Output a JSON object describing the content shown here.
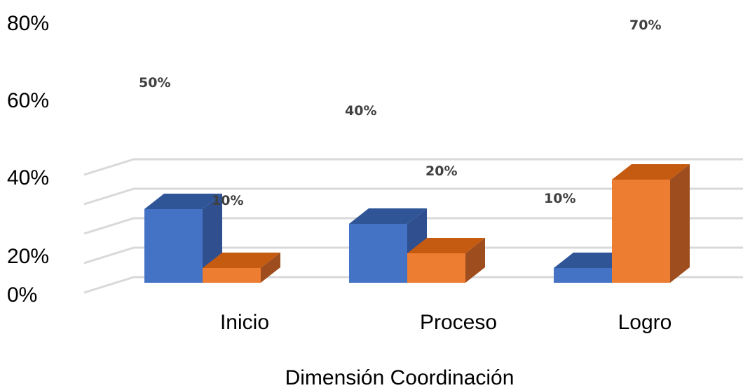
{
  "chart_data": {
    "type": "bar",
    "style": "3d-clustered-column",
    "categories": [
      "Inicio",
      "Proceso",
      "Logro"
    ],
    "series": [
      {
        "values": [
          50,
          40,
          10
        ],
        "color": "#4472C4",
        "side_color": "#2F4F8F",
        "top_color": "#2F5597"
      },
      {
        "values": [
          10,
          20,
          70
        ],
        "color": "#ED7D31",
        "side_color": "#9E4E1E",
        "top_color": "#C55A11"
      }
    ],
    "data_labels": [
      [
        "50%",
        "40%",
        "10%"
      ],
      [
        "10%",
        "20%",
        "70%"
      ]
    ],
    "yticks": [
      "0%",
      "20%",
      "40%",
      "60%",
      "80%"
    ],
    "ylim": [
      0,
      80
    ],
    "xlabel": "Dimensión Coordinación",
    "grid": true,
    "legend": "none",
    "colors": {
      "grid": "#D9D9D9",
      "label": "#404040"
    }
  }
}
